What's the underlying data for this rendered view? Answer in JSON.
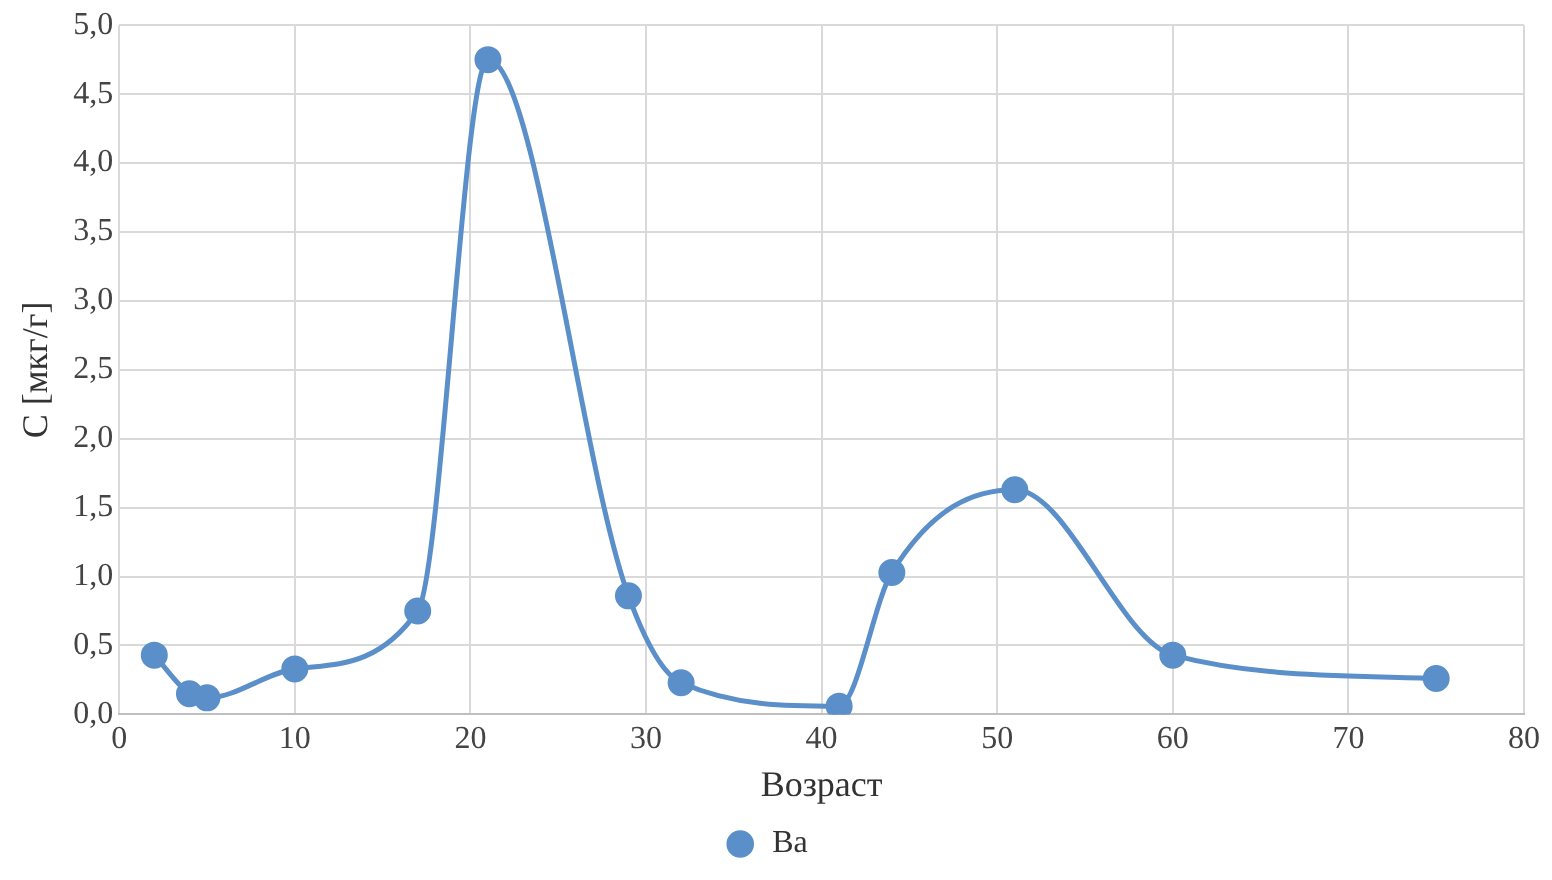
{
  "chart_data": {
    "type": "line",
    "xlabel": "Возраст",
    "ylabel": "C [мкг/г]",
    "series": [
      {
        "name": "Ba",
        "color": "#5b8fc9",
        "x": [
          2,
          4,
          5,
          10,
          17,
          21,
          29,
          32,
          41,
          44,
          51,
          60,
          75
        ],
        "values": [
          0.43,
          0.15,
          0.12,
          0.33,
          0.75,
          4.75,
          0.86,
          0.23,
          0.06,
          1.03,
          1.63,
          0.43,
          0.26
        ]
      }
    ],
    "xlim": [
      0,
      80
    ],
    "xticks": [
      0,
      10,
      20,
      30,
      40,
      50,
      60,
      70,
      80
    ],
    "ylim": [
      0,
      5
    ],
    "yticks": [
      {
        "value": 0,
        "label": "0,0"
      },
      {
        "value": 0.5,
        "label": "0,5"
      },
      {
        "value": 1,
        "label": "1,0"
      },
      {
        "value": 1.5,
        "label": "1,5"
      },
      {
        "value": 2,
        "label": "2,0"
      },
      {
        "value": 2.5,
        "label": "2,5"
      },
      {
        "value": 3,
        "label": "3,0"
      },
      {
        "value": 3.5,
        "label": "3,5"
      },
      {
        "value": 4,
        "label": "4,0"
      },
      {
        "value": 4.5,
        "label": "4,5"
      },
      {
        "value": 5,
        "label": "5,0"
      }
    ],
    "grid": true,
    "legend": "bottom",
    "marker": "circle",
    "line_style": "solid"
  }
}
